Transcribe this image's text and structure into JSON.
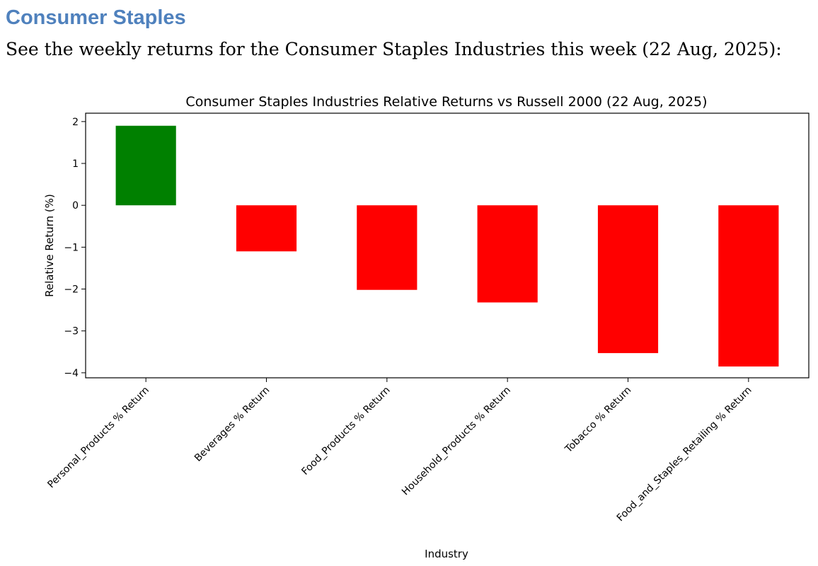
{
  "document": {
    "heading": "Consumer Staples",
    "intro": "See the weekly returns for the Consumer Staples Industries this week (22 Aug, 2025):"
  },
  "chart_data": {
    "type": "bar",
    "title": "Consumer Staples Industries Relative Returns vs Russell 2000 (22 Aug, 2025)",
    "xlabel": "Industry",
    "ylabel": "Relative Return (%)",
    "categories": [
      "Personal_Products % Return",
      "Beverages % Return",
      "Food_Products % Return",
      "Household_Products % Return",
      "Tobacco % Return",
      "Food_and_Staples_Retailing % Return"
    ],
    "values": [
      1.9,
      -1.1,
      -2.02,
      -2.32,
      -3.53,
      -3.85
    ],
    "ylim": [
      -4.12,
      2.2
    ],
    "yticks": [
      2,
      1,
      0,
      -1,
      -2,
      -3,
      -4
    ],
    "ytick_labels": [
      "2",
      "1",
      "0",
      "−1",
      "−2",
      "−3",
      "−4"
    ],
    "grid": false,
    "legend": "none",
    "colors": {
      "positive": "#008000",
      "negative": "#ff0000"
    }
  }
}
